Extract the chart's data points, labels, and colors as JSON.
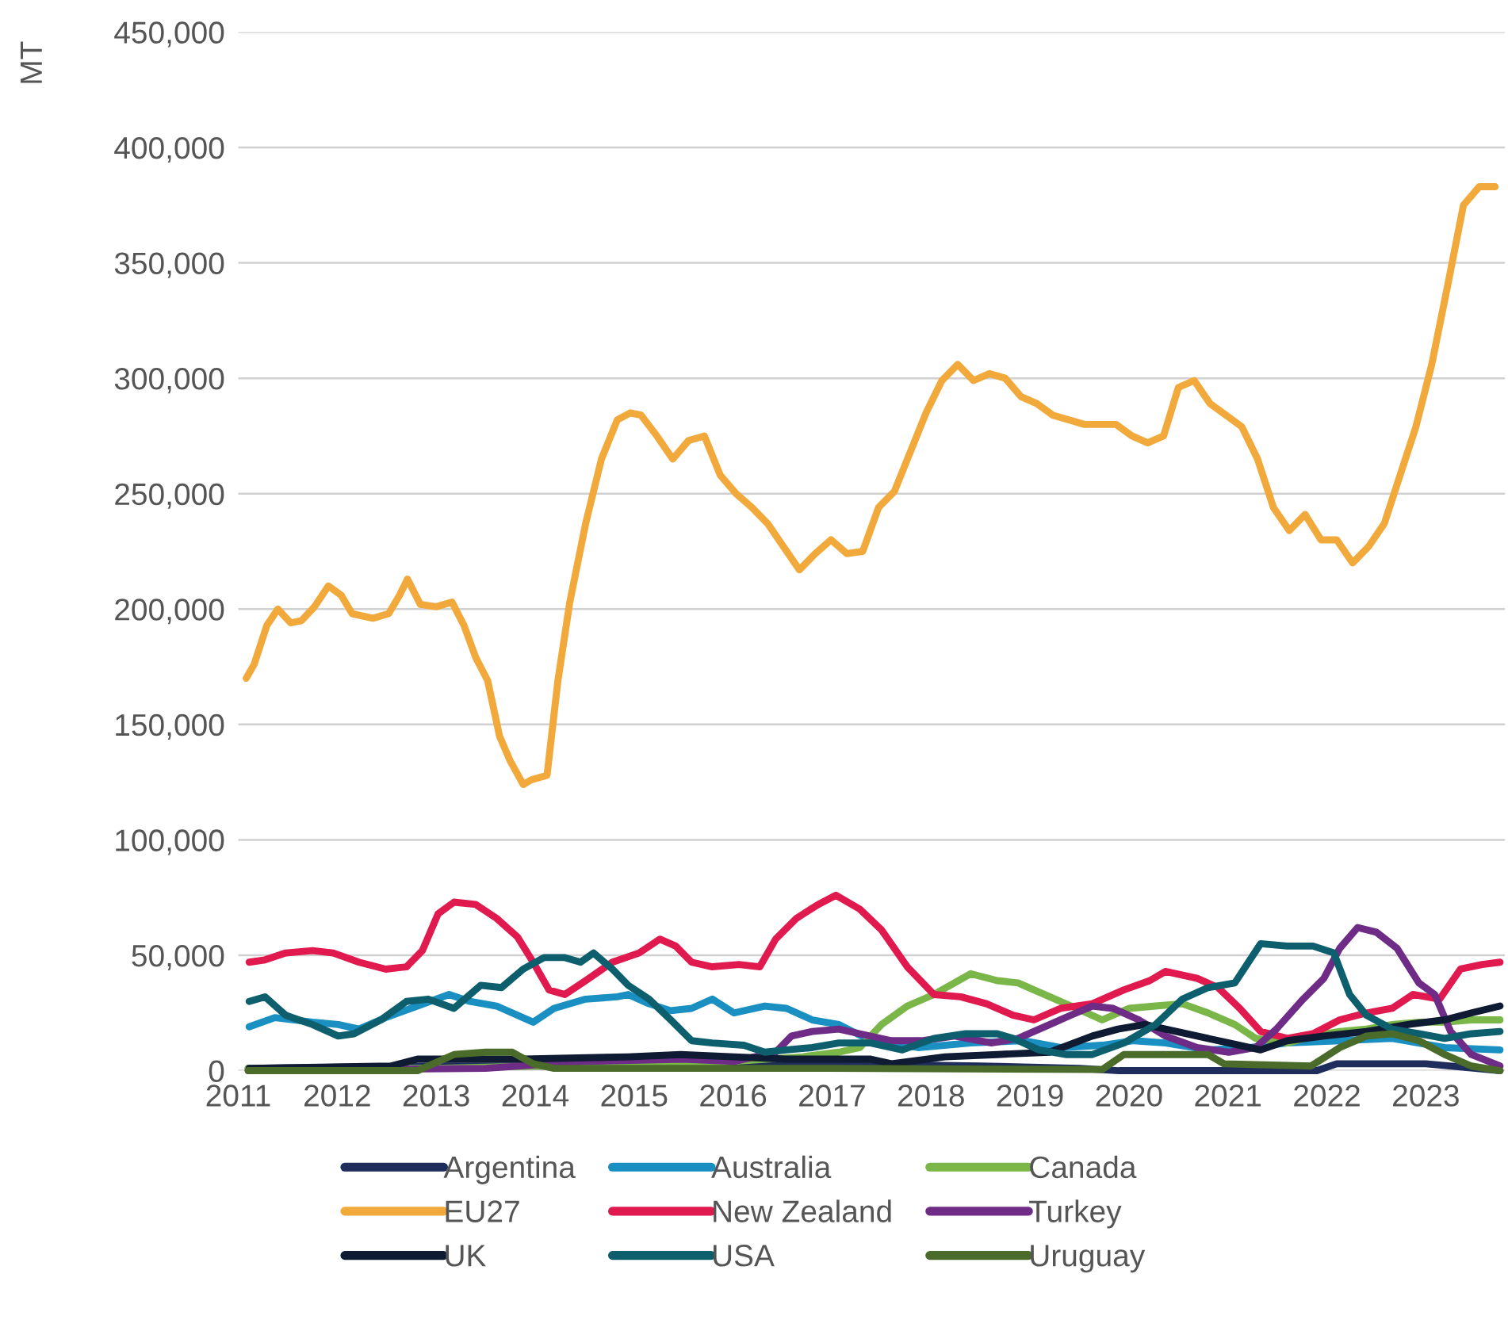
{
  "chart_data": {
    "type": "line",
    "ylabel": "MT",
    "xlim": [
      2011,
      2023.8
    ],
    "xticks": [
      2011,
      2012,
      2013,
      2014,
      2015,
      2016,
      2017,
      2018,
      2019,
      2020,
      2021,
      2022,
      2023
    ],
    "ylim": [
      0,
      450000
    ],
    "yticks": [
      0,
      {
        "value": 50000,
        "label": "50,000"
      },
      {
        "value": 100000,
        "label": "100,000"
      },
      {
        "value": 150000,
        "label": "150,000"
      },
      {
        "value": 200000,
        "label": "200,000"
      },
      {
        "value": 250000,
        "label": "250,000"
      },
      {
        "value": 300000,
        "label": "300,000"
      },
      {
        "value": 350000,
        "label": "350,000"
      },
      {
        "value": 400000,
        "label": "400,000"
      },
      {
        "value": 450000,
        "label": "450,000"
      }
    ],
    "grid": "y",
    "legend": "bottom",
    "marker": "none",
    "line_style": "solid",
    "series": [
      {
        "name": "Argentina",
        "color": "#1f2d5c",
        "x": [
          2011.1,
          2013,
          2015,
          2016,
          2017,
          2018.5,
          2019.5,
          2019.9,
          2021.9,
          2022.1,
          2023.0,
          2023.5,
          2023.75
        ],
        "values": [
          1000,
          2000,
          2000,
          3000,
          3000,
          2000,
          1000,
          0,
          0,
          3000,
          3000,
          1000,
          0
        ]
      },
      {
        "name": "Australia",
        "color": "#1a8fc1",
        "x": [
          2011.11,
          2011.37,
          2011.75,
          2012.01,
          2012.22,
          2012.49,
          2012.81,
          2013.13,
          2013.34,
          2013.61,
          2013.98,
          2014.19,
          2014.51,
          2014.83,
          2014.94,
          2015.15,
          2015.37,
          2015.58,
          2015.79,
          2016.01,
          2016.32,
          2016.54,
          2016.8,
          2017.07,
          2017.39,
          2017.87,
          2018.4,
          2018.93,
          2019.31,
          2019.73,
          2020.05,
          2020.37,
          2020.8,
          2021.22,
          2021.6,
          2022.13,
          2022.66,
          2023.19,
          2023.75
        ],
        "values": [
          19000,
          23000,
          21000,
          20000,
          18000,
          23000,
          28000,
          33000,
          30000,
          28000,
          21000,
          27000,
          31000,
          32000,
          33000,
          29000,
          26000,
          27000,
          31000,
          25000,
          28000,
          27000,
          22000,
          20000,
          13000,
          10000,
          12000,
          13000,
          10000,
          11000,
          13000,
          12000,
          9000,
          10000,
          12000,
          13000,
          14000,
          10000,
          9000
        ]
      },
      {
        "name": "Canada",
        "color": "#7ab648",
        "x": [
          2011.1,
          2013,
          2014,
          2015,
          2016,
          2016.7,
          2017.07,
          2017.28,
          2017.5,
          2017.76,
          2018.03,
          2018.4,
          2018.67,
          2018.88,
          2019.2,
          2019.47,
          2019.73,
          2020.0,
          2020.27,
          2020.54,
          2020.8,
          2021.07,
          2021.28,
          2021.6,
          2021.86,
          2022.13,
          2022.4,
          2022.66,
          2022.93,
          2023.19,
          2023.46,
          2023.75
        ],
        "values": [
          1000,
          1000,
          2000,
          2000,
          4000,
          6000,
          8000,
          10000,
          20000,
          28000,
          33000,
          42000,
          39000,
          38000,
          32000,
          27000,
          22000,
          27000,
          28000,
          29000,
          25000,
          20000,
          14000,
          12000,
          15000,
          17000,
          18000,
          20000,
          21000,
          21000,
          22000,
          22000
        ]
      },
      {
        "name": "EU27",
        "color": "#f2a93b",
        "x": [
          2011.08,
          2011.16,
          2011.29,
          2011.4,
          2011.53,
          2011.64,
          2011.77,
          2011.91,
          2012.04,
          2012.15,
          2012.36,
          2012.52,
          2012.63,
          2012.71,
          2012.84,
          2013.0,
          2013.16,
          2013.28,
          2013.4,
          2013.52,
          2013.64,
          2013.75,
          2013.88,
          2013.96,
          2014.12,
          2014.23,
          2014.35,
          2014.51,
          2014.67,
          2014.83,
          2014.96,
          2015.07,
          2015.23,
          2015.39,
          2015.55,
          2015.71,
          2015.87,
          2016.03,
          2016.19,
          2016.35,
          2016.51,
          2016.67,
          2016.83,
          2016.99,
          2017.15,
          2017.31,
          2017.47,
          2017.63,
          2017.79,
          2017.95,
          2018.11,
          2018.27,
          2018.43,
          2018.59,
          2018.75,
          2018.91,
          2019.07,
          2019.23,
          2019.39,
          2019.55,
          2019.71,
          2019.87,
          2020.03,
          2020.19,
          2020.35,
          2020.5,
          2020.66,
          2020.82,
          2020.98,
          2021.14,
          2021.3,
          2021.46,
          2021.62,
          2021.78,
          2021.94,
          2022.1,
          2022.26,
          2022.42,
          2022.58,
          2022.74,
          2022.9,
          2023.06,
          2023.22,
          2023.38,
          2023.54,
          2023.7
        ],
        "values": [
          170000,
          176000,
          193000,
          200000,
          194000,
          195000,
          201000,
          210000,
          206000,
          198000,
          196000,
          198000,
          206000,
          213000,
          202000,
          201000,
          203000,
          193000,
          179000,
          169000,
          145000,
          134000,
          124000,
          126000,
          128000,
          169000,
          203000,
          237000,
          265000,
          282000,
          285000,
          284000,
          275000,
          265000,
          273000,
          275000,
          258000,
          250000,
          244000,
          237000,
          227000,
          217000,
          224000,
          230000,
          224000,
          225000,
          244000,
          251000,
          268000,
          285000,
          299000,
          306000,
          299000,
          302000,
          300000,
          292000,
          289000,
          284000,
          282000,
          280000,
          280000,
          280000,
          275000,
          272000,
          275000,
          296000,
          299000,
          289000,
          284000,
          279000,
          265000,
          244000,
          234000,
          241000,
          230000,
          230000,
          220000,
          227000,
          237000,
          258000,
          279000,
          306000,
          340000,
          375000,
          383000,
          383000
        ]
      },
      {
        "name": "New Zealand",
        "color": "#e0194f",
        "x": [
          2011.11,
          2011.27,
          2011.48,
          2011.75,
          2011.96,
          2012.22,
          2012.49,
          2012.7,
          2012.86,
          2013.02,
          2013.18,
          2013.4,
          2013.61,
          2013.82,
          2013.98,
          2014.14,
          2014.3,
          2014.51,
          2014.78,
          2015.05,
          2015.26,
          2015.42,
          2015.58,
          2015.79,
          2016.06,
          2016.27,
          2016.43,
          2016.64,
          2016.86,
          2017.04,
          2017.28,
          2017.5,
          2017.76,
          2018.03,
          2018.3,
          2018.56,
          2018.83,
          2019.04,
          2019.31,
          2019.63,
          2019.95,
          2020.21,
          2020.37,
          2020.69,
          2020.9,
          2021.12,
          2021.33,
          2021.6,
          2021.86,
          2022.13,
          2022.4,
          2022.66,
          2022.87,
          2023.14,
          2023.35,
          2023.57,
          2023.75
        ],
        "values": [
          47000,
          48000,
          51000,
          52000,
          51000,
          47000,
          44000,
          45000,
          52000,
          68000,
          73000,
          72000,
          66000,
          58000,
          47000,
          35000,
          33000,
          39000,
          47000,
          51000,
          57000,
          54000,
          47000,
          45000,
          46000,
          45000,
          57000,
          66000,
          72000,
          76000,
          70000,
          61000,
          45000,
          33000,
          32000,
          29000,
          24000,
          22000,
          27000,
          29000,
          35000,
          39000,
          43000,
          40000,
          36000,
          27000,
          17000,
          14000,
          16000,
          22000,
          25000,
          27000,
          33000,
          31000,
          44000,
          46000,
          47000
        ]
      },
      {
        "name": "Turkey",
        "color": "#6e2c86",
        "x": [
          2011.1,
          2013.5,
          2014.5,
          2015.5,
          2016.01,
          2016.43,
          2016.59,
          2016.8,
          2017.07,
          2017.28,
          2017.6,
          2017.92,
          2018.24,
          2018.61,
          2018.88,
          2019.2,
          2019.41,
          2019.63,
          2019.84,
          2020.1,
          2020.37,
          2020.69,
          2021.01,
          2021.28,
          2021.49,
          2021.76,
          2021.97,
          2022.13,
          2022.31,
          2022.5,
          2022.71,
          2022.93,
          2023.09,
          2023.25,
          2023.46,
          2023.75
        ],
        "values": [
          0,
          1000,
          4000,
          5000,
          4000,
          8000,
          15000,
          17000,
          18000,
          16000,
          13000,
          13000,
          15000,
          12000,
          14000,
          20000,
          24000,
          28000,
          27000,
          22000,
          15000,
          10000,
          8000,
          10000,
          18000,
          31000,
          40000,
          53000,
          62000,
          60000,
          53000,
          38000,
          33000,
          17000,
          7000,
          2000
        ]
      },
      {
        "name": "UK",
        "color": "#0f1a33",
        "x": [
          2011.11,
          2012.54,
          2012.81,
          2013.88,
          2014.94,
          2015.47,
          2016.01,
          2016.54,
          2017.39,
          2017.6,
          2018.14,
          2018.67,
          2019.2,
          2019.63,
          2019.89,
          2020.16,
          2020.37,
          2020.69,
          2021.01,
          2021.33,
          2021.6,
          2021.97,
          2022.4,
          2022.82,
          2023.19,
          2023.46,
          2023.75
        ],
        "values": [
          1000,
          2000,
          5000,
          5000,
          6000,
          7000,
          6000,
          5000,
          5000,
          3000,
          6000,
          7000,
          8000,
          15000,
          18000,
          20000,
          18000,
          15000,
          12000,
          9000,
          13000,
          15000,
          17000,
          20000,
          22000,
          25000,
          28000
        ]
      },
      {
        "name": "USA",
        "color": "#0e5f6e",
        "x": [
          2011.11,
          2011.27,
          2011.48,
          2011.75,
          2012.01,
          2012.17,
          2012.44,
          2012.7,
          2012.92,
          2013.18,
          2013.45,
          2013.66,
          2013.88,
          2014.09,
          2014.3,
          2014.46,
          2014.59,
          2014.78,
          2014.94,
          2015.15,
          2015.37,
          2015.58,
          2015.79,
          2016.11,
          2016.32,
          2016.54,
          2016.8,
          2017.07,
          2017.39,
          2017.71,
          2018.03,
          2018.35,
          2018.67,
          2018.83,
          2019.09,
          2019.36,
          2019.63,
          2019.95,
          2020.27,
          2020.54,
          2020.8,
          2021.07,
          2021.33,
          2021.6,
          2021.86,
          2022.07,
          2022.23,
          2022.4,
          2022.66,
          2022.93,
          2023.19,
          2023.46,
          2023.75
        ],
        "values": [
          30000,
          32000,
          24000,
          20000,
          15000,
          16000,
          22000,
          30000,
          31000,
          27000,
          37000,
          36000,
          44000,
          49000,
          49000,
          47000,
          51000,
          44000,
          37000,
          31000,
          22000,
          13000,
          12000,
          11000,
          8000,
          9000,
          10000,
          12000,
          12000,
          9000,
          14000,
          16000,
          16000,
          14000,
          9000,
          7000,
          7000,
          12000,
          20000,
          31000,
          36000,
          38000,
          55000,
          54000,
          54000,
          51000,
          33000,
          24000,
          18000,
          16000,
          14000,
          16000,
          17000
        ]
      },
      {
        "name": "Uruguay",
        "color": "#4a6b2a",
        "x": [
          2011.1,
          2012.81,
          2012.97,
          2013.18,
          2013.5,
          2013.77,
          2013.98,
          2014.19,
          2015.0,
          2017.0,
          2019.73,
          2019.95,
          2020.8,
          2020.96,
          2021.84,
          2022.13,
          2022.4,
          2022.66,
          2022.93,
          2023.19,
          2023.46,
          2023.75
        ],
        "values": [
          0,
          0,
          3000,
          7000,
          8000,
          8000,
          3000,
          1000,
          1000,
          1000,
          500,
          7000,
          7000,
          3000,
          2000,
          10000,
          15000,
          16000,
          13000,
          7000,
          2000,
          0
        ]
      }
    ]
  }
}
